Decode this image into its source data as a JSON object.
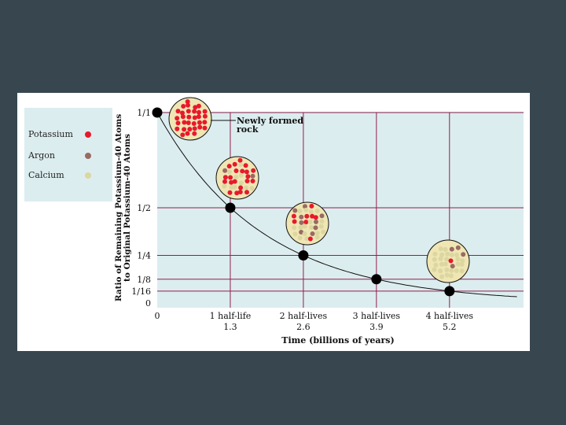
{
  "legend": {
    "items": [
      {
        "label": "Potassium",
        "color": "#e8192c"
      },
      {
        "label": "Argon",
        "color": "#9a6a63"
      },
      {
        "label": "Calcium",
        "color": "#dcd6a0"
      }
    ]
  },
  "chart_data": {
    "type": "line",
    "title": "",
    "xlabel": "Time (billions of years)",
    "ylabel_line1": "Ratio of Remaining Potassium-40 Atoms",
    "ylabel_line2": "to Original Potassium-40 Atoms",
    "xlim": [
      0,
      6.5
    ],
    "ylim": [
      0,
      1
    ],
    "x_ticks": [
      {
        "value": 0,
        "line1": "0",
        "line2": ""
      },
      {
        "value": 1.3,
        "line1": "1 half-life",
        "line2": "1.3"
      },
      {
        "value": 2.6,
        "line1": "2 half-lives",
        "line2": "2.6"
      },
      {
        "value": 3.9,
        "line1": "3 half-lives",
        "line2": "3.9"
      },
      {
        "value": 5.2,
        "line1": "4 half-lives",
        "line2": "5.2"
      }
    ],
    "y_ticks": [
      {
        "value": 1,
        "label": "1/1"
      },
      {
        "value": 0.5,
        "label": "1/2"
      },
      {
        "value": 0.25,
        "label": "1/4"
      },
      {
        "value": 0.125,
        "label": "1/8"
      },
      {
        "value": 0.0625,
        "label": "1/16"
      },
      {
        "value": 0,
        "label": "0"
      }
    ],
    "half_life": 1.3,
    "points": [
      {
        "x": 0,
        "y": 1
      },
      {
        "x": 1.3,
        "y": 0.5
      },
      {
        "x": 2.6,
        "y": 0.25
      },
      {
        "x": 3.9,
        "y": 0.125
      },
      {
        "x": 5.2,
        "y": 0.0625
      }
    ],
    "annotation_line1": "Newly formed",
    "annotation_line2": "rock",
    "rock_samples": [
      {
        "potassium_fraction": 1
      },
      {
        "potassium_fraction": 0.5
      },
      {
        "potassium_fraction": 0.25
      },
      {
        "potassium_fraction": 0.125
      }
    ]
  }
}
